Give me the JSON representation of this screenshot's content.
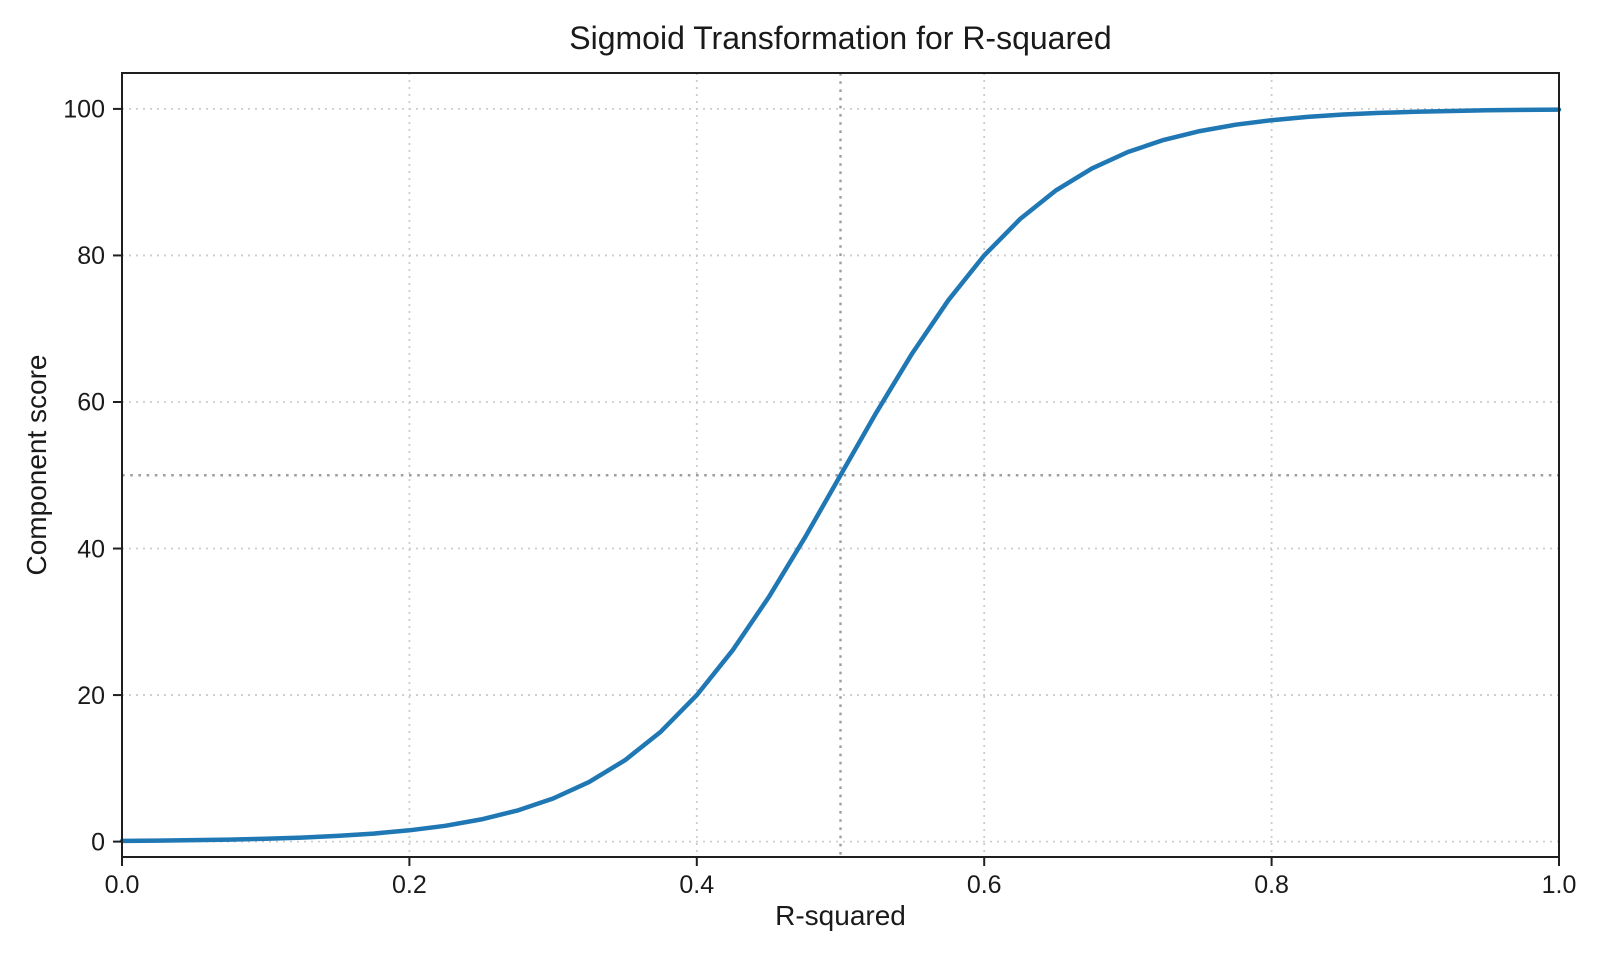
{
  "chart_data": {
    "type": "line",
    "title": "Sigmoid Transformation for R-squared",
    "xlabel": "R-squared",
    "ylabel": "Component score",
    "xlim": [
      0.0,
      1.0
    ],
    "ylim": [
      -2.1,
      104.9
    ],
    "xticks": [
      "0.0",
      "0.2",
      "0.4",
      "0.6",
      "0.8",
      "1.0"
    ],
    "xtick_values": [
      0.0,
      0.2,
      0.4,
      0.6,
      0.8,
      1.0
    ],
    "yticks": [
      "0",
      "20",
      "40",
      "60",
      "80",
      "100"
    ],
    "ytick_values": [
      0,
      20,
      40,
      60,
      80,
      100
    ],
    "grid": true,
    "grid_style": "dotted",
    "legend": "none",
    "series": [
      {
        "name": "sigmoid",
        "color": "#1f77b4",
        "line_width": 4.5,
        "x": [
          0.0,
          0.025,
          0.05,
          0.075,
          0.1,
          0.125,
          0.15,
          0.175,
          0.2,
          0.225,
          0.25,
          0.275,
          0.3,
          0.325,
          0.35,
          0.375,
          0.4,
          0.425,
          0.45,
          0.475,
          0.5,
          0.525,
          0.55,
          0.575,
          0.6,
          0.625,
          0.65,
          0.675,
          0.7,
          0.725,
          0.75,
          0.775,
          0.8,
          0.825,
          0.85,
          0.875,
          0.9,
          0.925,
          0.95,
          0.975,
          1.0
        ],
        "y": [
          0.1,
          0.14,
          0.2,
          0.28,
          0.39,
          0.55,
          0.78,
          1.09,
          1.54,
          2.16,
          3.03,
          4.23,
          5.88,
          8.12,
          11.11,
          15.02,
          20.0,
          26.12,
          33.33,
          41.42,
          50.0,
          58.58,
          66.67,
          73.88,
          80.0,
          84.98,
          88.89,
          91.88,
          94.12,
          95.77,
          96.97,
          97.84,
          98.46,
          98.91,
          99.23,
          99.45,
          99.61,
          99.72,
          99.81,
          99.86,
          99.9
        ]
      }
    ],
    "reference_lines": [
      {
        "axis": "x",
        "value": 0.5,
        "style": "dotted",
        "color": "#9e9e9e"
      },
      {
        "axis": "y",
        "value": 50,
        "style": "dotted",
        "color": "#9e9e9e"
      }
    ],
    "colors": {
      "line": "#1f77b4",
      "grid": "#cccccc",
      "reference": "#9e9e9e",
      "spine": "#1f1f1f",
      "text": "#1a1a1a",
      "background": "#ffffff"
    }
  }
}
